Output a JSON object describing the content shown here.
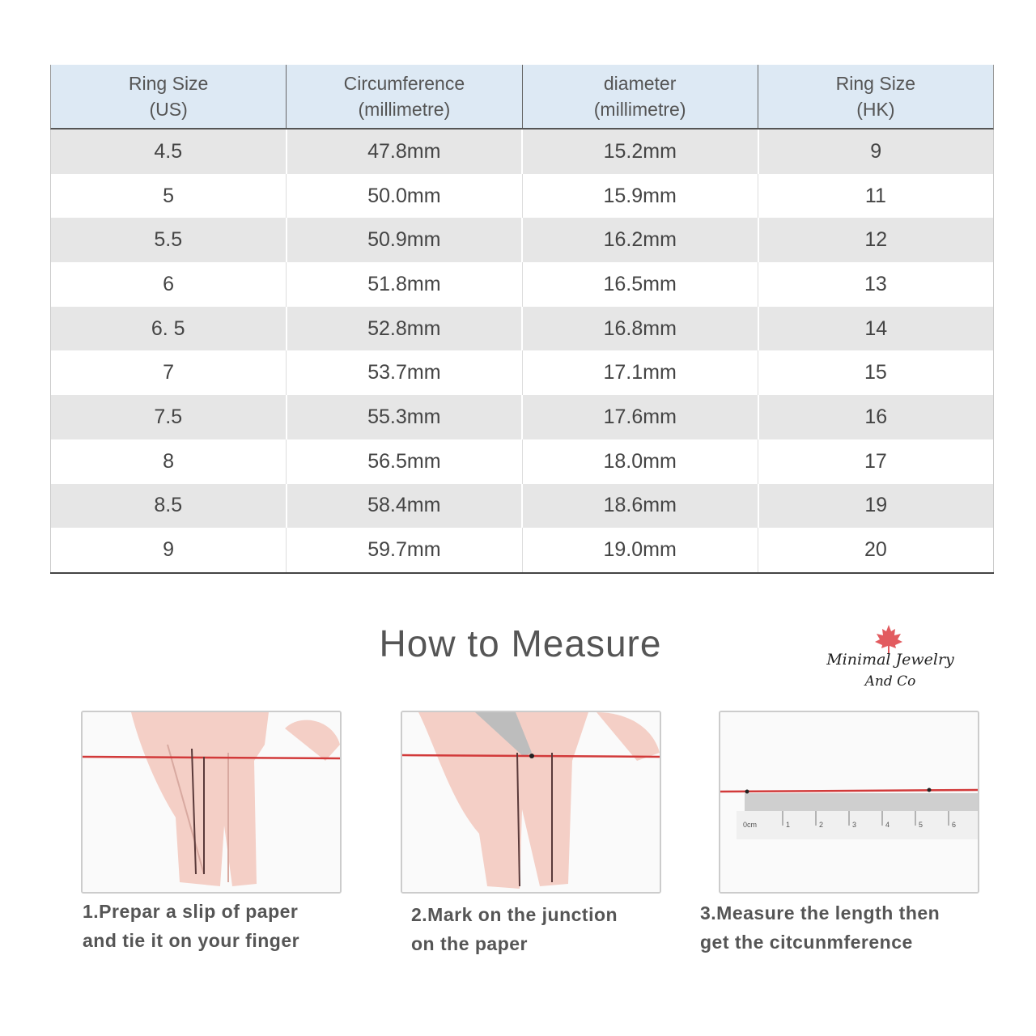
{
  "table": {
    "headers": [
      {
        "line1": "Ring Size",
        "line2": "(US)"
      },
      {
        "line1": "Circumference",
        "line2": "(millimetre)"
      },
      {
        "line1": "diameter",
        "line2": "(millimetre)"
      },
      {
        "line1": "Ring Size",
        "line2": "(HK)"
      }
    ],
    "rows": [
      [
        "4.5",
        "47.8mm",
        "15.2mm",
        "9"
      ],
      [
        "5",
        "50.0mm",
        "15.9mm",
        "11"
      ],
      [
        "5.5",
        "50.9mm",
        "16.2mm",
        "12"
      ],
      [
        "6",
        "51.8mm",
        "16.5mm",
        "13"
      ],
      [
        "6. 5",
        "52.8mm",
        "16.8mm",
        "14"
      ],
      [
        "7",
        "53.7mm",
        "17.1mm",
        "15"
      ],
      [
        "7.5",
        "55.3mm",
        "17.6mm",
        "16"
      ],
      [
        "8",
        "56.5mm",
        "18.0mm",
        "17"
      ],
      [
        "8.5",
        "58.4mm",
        "18.6mm",
        "19"
      ],
      [
        "9",
        "59.7mm",
        "19.0mm",
        "20"
      ]
    ]
  },
  "colors": {
    "header_bg": "#dde9f4",
    "stripe": "#e6e6e6",
    "string": "#d23a3a",
    "leaf": "#e25b5f"
  },
  "how_to": {
    "title": "How to Measure",
    "steps": [
      {
        "line1": "1.Prepar a slip of paper",
        "line2": "and tie it on your finger"
      },
      {
        "line1": "2.Mark on the junction",
        "line2": "on the paper"
      },
      {
        "line1": "3.Measure the length then",
        "line2": "get the citcunmference"
      }
    ],
    "ruler_labels": [
      "0cm",
      "1",
      "2",
      "3",
      "4",
      "5",
      "6"
    ]
  },
  "logo": {
    "line1": "Minimal Jewelry",
    "line2": "And Co",
    "icon": "maple-leaf-icon"
  }
}
